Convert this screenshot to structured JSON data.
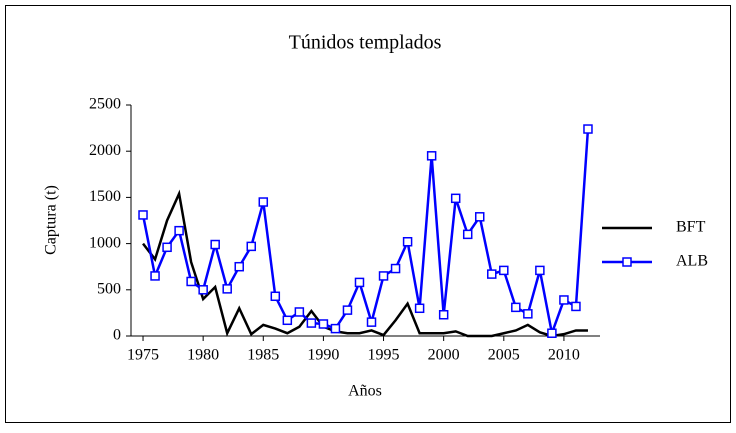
{
  "chart_data": {
    "type": "line",
    "title": "Túnidos templados",
    "x_label": "Años",
    "y_label": "Captura (t)",
    "x": [
      1975,
      1976,
      1977,
      1978,
      1979,
      1980,
      1981,
      1982,
      1983,
      1984,
      1985,
      1986,
      1987,
      1988,
      1989,
      1990,
      1991,
      1992,
      1993,
      1994,
      1995,
      1996,
      1997,
      1998,
      1999,
      2000,
      2001,
      2002,
      2003,
      2004,
      2005,
      2006,
      2007,
      2008,
      2009,
      2010,
      2011,
      2012
    ],
    "series": [
      {
        "name": "BFT",
        "color": "#000000",
        "marker": "none",
        "values": [
          1000,
          830,
          1250,
          1540,
          800,
          400,
          530,
          30,
          300,
          20,
          120,
          80,
          30,
          100,
          270,
          100,
          50,
          30,
          30,
          60,
          10,
          170,
          350,
          30,
          30,
          30,
          50,
          0,
          0,
          0,
          30,
          60,
          120,
          40,
          0,
          20,
          60,
          60
        ]
      },
      {
        "name": "ALB",
        "color": "#0000ff",
        "marker": "square",
        "values": [
          1310,
          650,
          960,
          1140,
          590,
          500,
          990,
          510,
          750,
          970,
          1450,
          430,
          170,
          260,
          140,
          130,
          80,
          280,
          580,
          150,
          650,
          730,
          1020,
          300,
          1950,
          230,
          1490,
          1100,
          1290,
          670,
          710,
          310,
          240,
          710,
          30,
          390,
          320,
          2240
        ]
      }
    ],
    "xlim": [
      1974,
      2013
    ],
    "ylim": [
      0,
      2500
    ],
    "xticks": [
      1975,
      1980,
      1985,
      1990,
      1995,
      2000,
      2005,
      2010
    ],
    "yticks": [
      0,
      500,
      1000,
      1500,
      2000,
      2500
    ],
    "legend": "right",
    "grid": false
  }
}
